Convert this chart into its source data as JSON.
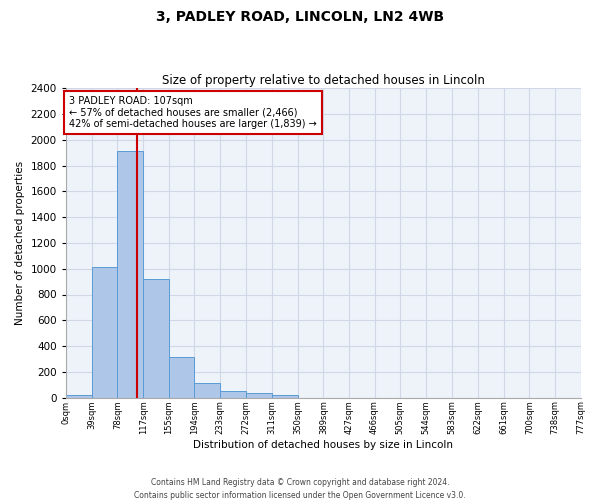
{
  "title": "3, PADLEY ROAD, LINCOLN, LN2 4WB",
  "subtitle": "Size of property relative to detached houses in Lincoln",
  "xlabel": "Distribution of detached houses by size in Lincoln",
  "ylabel": "Number of detached properties",
  "annotation_line1": "3 PADLEY ROAD: 107sqm",
  "annotation_line2": "← 57% of detached houses are smaller (2,466)",
  "annotation_line3": "42% of semi-detached houses are larger (1,839) →",
  "property_size_sqm": 107,
  "bin_edges": [
    0,
    39,
    78,
    117,
    155,
    194,
    233,
    272,
    311,
    350,
    389,
    427,
    466,
    505,
    544,
    583,
    622,
    661,
    700,
    738,
    777
  ],
  "bar_heights": [
    20,
    1010,
    1910,
    920,
    315,
    110,
    55,
    35,
    20,
    0,
    0,
    0,
    0,
    0,
    0,
    0,
    0,
    0,
    0,
    0
  ],
  "bar_color": "#aec6e8",
  "bar_edge_color": "#5b9bd5",
  "vline_color": "#cc0000",
  "vline_x": 107,
  "annotation_box_color": "#cc0000",
  "annotation_text_color": "#000000",
  "ylim": [
    0,
    2400
  ],
  "yticks": [
    0,
    200,
    400,
    600,
    800,
    1000,
    1200,
    1400,
    1600,
    1800,
    2000,
    2200,
    2400
  ],
  "grid_color": "#d0d8e8",
  "footer_line1": "Contains HM Land Registry data © Crown copyright and database right 2024.",
  "footer_line2": "Contains public sector information licensed under the Open Government Licence v3.0.",
  "bg_color": "#eef2f9"
}
